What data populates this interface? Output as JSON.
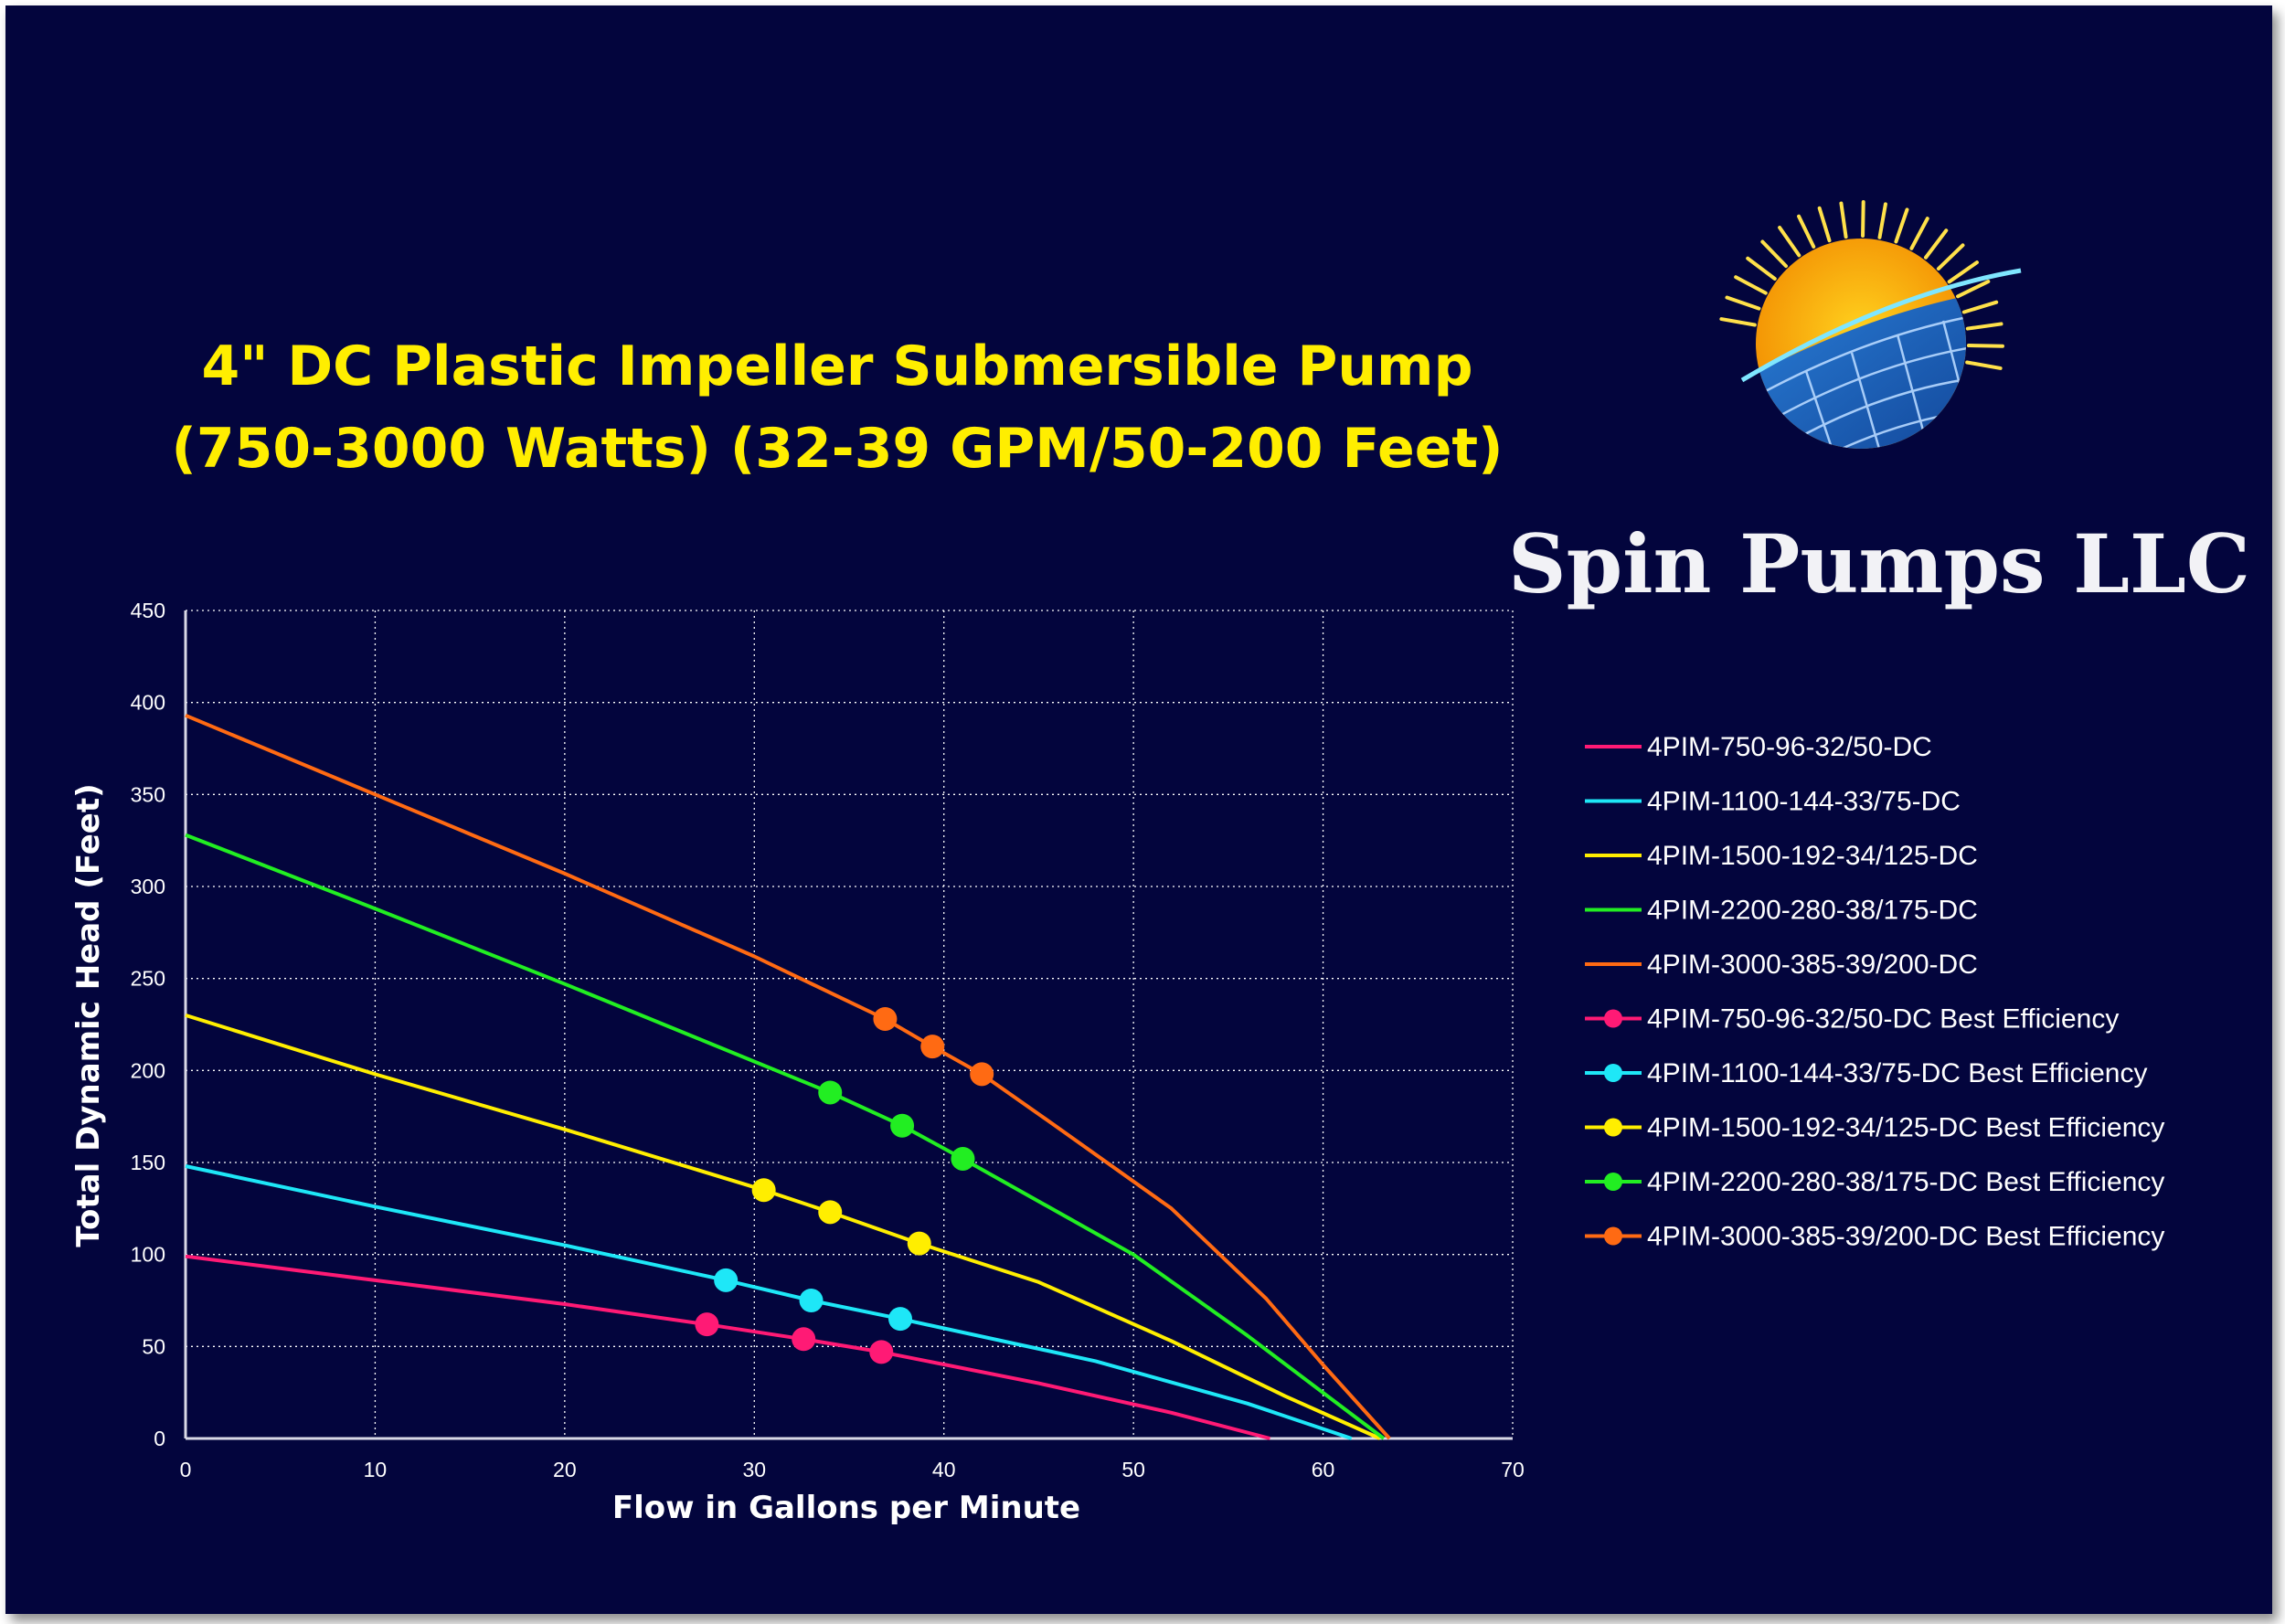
{
  "colors": {
    "background": "#03053d",
    "title": "#ffee00",
    "grid": "#ffffff",
    "text": "#ffffff"
  },
  "brand": {
    "name": "Spin Pumps LLC",
    "logo_icon": "sun-solar-panel-logo-icon"
  },
  "chart_data": {
    "type": "line",
    "title": [
      "4\" DC Plastic Impeller Submersible Pump",
      "(750-3000 Watts) (32-39 GPM/50-200 Feet)"
    ],
    "xlabel": "Flow in Gallons per Minute",
    "ylabel": "Total Dynamic Head (Feet)",
    "xlim": [
      0,
      70
    ],
    "ylim": [
      0,
      450
    ],
    "xticks": [
      0,
      10,
      20,
      30,
      40,
      50,
      60,
      70
    ],
    "yticks": [
      0,
      50,
      100,
      150,
      200,
      250,
      300,
      350,
      400,
      450
    ],
    "grid": "dotted",
    "legend_position": "right",
    "series": [
      {
        "name": "4PIM-750-96-32/50-DC",
        "color": "#ff1a75",
        "kind": "curve",
        "points": [
          [
            0,
            99
          ],
          [
            10,
            86
          ],
          [
            20,
            73
          ],
          [
            27.5,
            62
          ],
          [
            32.6,
            54
          ],
          [
            36.7,
            47
          ],
          [
            45,
            30
          ],
          [
            52,
            14
          ],
          [
            57.2,
            0
          ]
        ]
      },
      {
        "name": "4PIM-1100-144-33/75-DC",
        "color": "#1ee7f7",
        "kind": "curve",
        "points": [
          [
            0,
            148
          ],
          [
            10,
            126
          ],
          [
            20,
            105
          ],
          [
            28.5,
            86
          ],
          [
            33,
            75
          ],
          [
            37.7,
            65
          ],
          [
            48,
            42
          ],
          [
            56,
            19
          ],
          [
            61.5,
            0
          ]
        ]
      },
      {
        "name": "4PIM-1500-192-34/125-DC",
        "color": "#ffee00",
        "kind": "curve",
        "points": [
          [
            0,
            230
          ],
          [
            10,
            198
          ],
          [
            20,
            168
          ],
          [
            30.5,
            135
          ],
          [
            34,
            123
          ],
          [
            38.7,
            106
          ],
          [
            45,
            85
          ],
          [
            52,
            53
          ],
          [
            58,
            23
          ],
          [
            63,
            0
          ]
        ]
      },
      {
        "name": "4PIM-2200-280-38/175-DC",
        "color": "#22ee22",
        "kind": "curve",
        "points": [
          [
            0,
            328
          ],
          [
            10,
            288
          ],
          [
            20,
            247
          ],
          [
            34,
            188
          ],
          [
            37.8,
            170
          ],
          [
            41,
            152
          ],
          [
            50,
            100
          ],
          [
            56,
            56
          ],
          [
            63.2,
            0
          ]
        ]
      },
      {
        "name": "4PIM-3000-385-39/200-DC",
        "color": "#ff6a13",
        "kind": "curve",
        "points": [
          [
            0,
            393
          ],
          [
            10,
            350
          ],
          [
            20,
            307
          ],
          [
            30,
            262
          ],
          [
            36.9,
            228
          ],
          [
            39.4,
            213
          ],
          [
            42,
            198
          ],
          [
            46,
            169
          ],
          [
            52,
            125
          ],
          [
            57,
            76
          ],
          [
            60,
            40
          ],
          [
            63.5,
            0
          ]
        ]
      },
      {
        "name": "4PIM-750-96-32/50-DC Best Efficiency",
        "color": "#ff1a75",
        "kind": "points",
        "points": [
          [
            27.5,
            62
          ],
          [
            32.6,
            54
          ],
          [
            36.7,
            47
          ]
        ]
      },
      {
        "name": "4PIM-1100-144-33/75-DC Best Efficiency",
        "color": "#1ee7f7",
        "kind": "points",
        "points": [
          [
            28.5,
            86
          ],
          [
            33,
            75
          ],
          [
            37.7,
            65
          ]
        ]
      },
      {
        "name": "4PIM-1500-192-34/125-DC Best Efficiency",
        "color": "#ffee00",
        "kind": "points",
        "points": [
          [
            30.5,
            135
          ],
          [
            34,
            123
          ],
          [
            38.7,
            106
          ]
        ]
      },
      {
        "name": "4PIM-2200-280-38/175-DC Best Efficiency",
        "color": "#22ee22",
        "kind": "points",
        "points": [
          [
            34,
            188
          ],
          [
            37.8,
            170
          ],
          [
            41,
            152
          ]
        ]
      },
      {
        "name": "4PIM-3000-385-39/200-DC Best Efficiency",
        "color": "#ff6a13",
        "kind": "points",
        "points": [
          [
            36.9,
            228
          ],
          [
            39.4,
            213
          ],
          [
            42,
            198
          ]
        ]
      }
    ]
  }
}
